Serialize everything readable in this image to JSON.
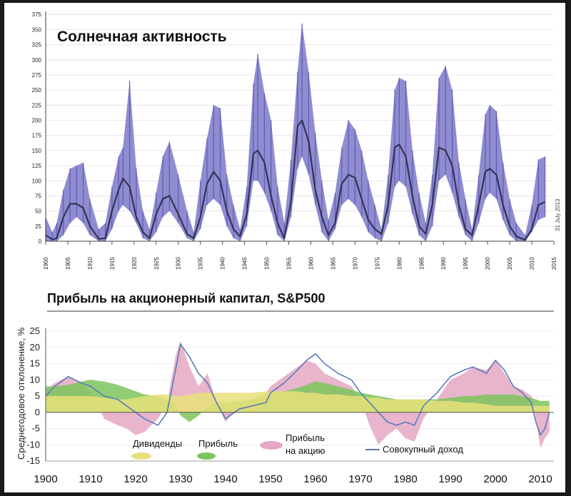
{
  "chart_data": [
    {
      "type": "line",
      "title": "Солнечная активность",
      "note": "31 July 2013",
      "xlim": [
        1900,
        2015
      ],
      "ylim": [
        0,
        380
      ],
      "x_ticks": [
        1900,
        1905,
        1910,
        1915,
        1920,
        1925,
        1930,
        1935,
        1940,
        1945,
        1950,
        1955,
        1960,
        1965,
        1970,
        1975,
        1980,
        1985,
        1990,
        1995,
        2000,
        2005,
        2010,
        2015
      ],
      "y_ticks": [
        0,
        25,
        50,
        75,
        100,
        125,
        150,
        175,
        200,
        225,
        250,
        275,
        300,
        325,
        350,
        375
      ],
      "series": [
        {
          "name": "",
          "kind": "monthly-range",
          "color": "#7b78c8",
          "x": [
            1900,
            1901.5,
            1902.5,
            1904,
            1905.5,
            1907,
            1908.5,
            1910,
            1912,
            1913.5,
            1915,
            1916.5,
            1917.5,
            1919,
            1920.5,
            1922,
            1923.5,
            1925,
            1926.5,
            1928,
            1930,
            1932,
            1933.5,
            1935,
            1936.5,
            1938,
            1939.5,
            1941,
            1942.5,
            1944,
            1945.5,
            1947,
            1948,
            1949.5,
            1951,
            1952.5,
            1954,
            1955.5,
            1957,
            1958,
            1959.5,
            1961,
            1962.5,
            1964,
            1965.5,
            1967,
            1968.5,
            1970,
            1971.5,
            1973,
            1974.5,
            1976,
            1977.5,
            1979,
            1980,
            1981.5,
            1983,
            1984.5,
            1986,
            1987.5,
            1989,
            1990.5,
            1992,
            1993.5,
            1995,
            1996.5,
            1998,
            1999.5,
            2000.5,
            2002,
            2003.5,
            2005,
            2006.5,
            2008.5,
            2010,
            2011.5,
            2013
          ],
          "high": [
            40,
            15,
            30,
            85,
            120,
            125,
            130,
            70,
            20,
            30,
            90,
            140,
            155,
            265,
            120,
            50,
            20,
            80,
            140,
            165,
            110,
            50,
            15,
            100,
            170,
            225,
            220,
            110,
            60,
            20,
            90,
            260,
            310,
            245,
            200,
            90,
            30,
            135,
            280,
            360,
            280,
            180,
            100,
            35,
            80,
            155,
            200,
            185,
            150,
            100,
            60,
            20,
            110,
            250,
            270,
            265,
            150,
            80,
            30,
            110,
            270,
            290,
            250,
            130,
            70,
            20,
            110,
            210,
            225,
            215,
            130,
            70,
            30,
            10,
            60,
            135,
            140
          ],
          "low": [
            0,
            0,
            0,
            10,
            30,
            40,
            30,
            10,
            0,
            0,
            20,
            50,
            60,
            50,
            30,
            5,
            0,
            15,
            40,
            50,
            30,
            5,
            0,
            20,
            60,
            70,
            60,
            25,
            5,
            0,
            25,
            100,
            100,
            80,
            50,
            10,
            0,
            40,
            120,
            140,
            110,
            60,
            15,
            0,
            20,
            60,
            70,
            60,
            40,
            15,
            5,
            0,
            30,
            90,
            100,
            90,
            45,
            10,
            0,
            25,
            100,
            110,
            80,
            40,
            10,
            0,
            30,
            70,
            80,
            70,
            35,
            10,
            0,
            0,
            15,
            35,
            40
          ]
        },
        {
          "name": "",
          "kind": "smoothed",
          "color": "#333355",
          "x": [
            1900,
            1901.5,
            1902.5,
            1904,
            1905.5,
            1907,
            1908.5,
            1910,
            1912,
            1913.5,
            1915,
            1916.5,
            1917.5,
            1919,
            1920.5,
            1922,
            1923.5,
            1925,
            1926.5,
            1928,
            1930,
            1932,
            1933.5,
            1935,
            1936.5,
            1938,
            1939.5,
            1941,
            1942.5,
            1944,
            1945.5,
            1947,
            1948,
            1949.5,
            1951,
            1952.5,
            1954,
            1955.5,
            1957,
            1958,
            1959.5,
            1961,
            1962.5,
            1964,
            1965.5,
            1967,
            1968.5,
            1970,
            1971.5,
            1973,
            1974.5,
            1976,
            1977.5,
            1979,
            1980,
            1981.5,
            1983,
            1984.5,
            1986,
            1987.5,
            1989,
            1990.5,
            1992,
            1993.5,
            1995,
            1996.5,
            1998,
            1999.5,
            2000.5,
            2002,
            2003.5,
            2005,
            2006.5,
            2008.5,
            2010,
            2011.5,
            2013
          ],
          "values": [
            10,
            3,
            5,
            40,
            62,
            62,
            55,
            25,
            4,
            5,
            50,
            85,
            104,
            90,
            40,
            15,
            5,
            45,
            70,
            75,
            45,
            12,
            5,
            40,
            95,
            115,
            100,
            50,
            20,
            8,
            45,
            145,
            150,
            130,
            75,
            30,
            5,
            65,
            190,
            200,
            165,
            85,
            40,
            10,
            30,
            95,
            110,
            105,
            70,
            35,
            20,
            12,
            60,
            155,
            160,
            140,
            75,
            25,
            12,
            60,
            155,
            150,
            125,
            60,
            20,
            10,
            60,
            115,
            120,
            110,
            60,
            25,
            8,
            2,
            20,
            60,
            65
          ]
        }
      ]
    },
    {
      "type": "area",
      "title": "Прибыль на акционерный капитал, S&P500",
      "ylabel": "Среднегодовое отклонение, %",
      "xlim": [
        1900,
        2013
      ],
      "ylim": [
        -15,
        25
      ],
      "x_ticks": [
        1900,
        1910,
        1920,
        1930,
        1940,
        1950,
        1960,
        1970,
        1980,
        1990,
        2000,
        2010
      ],
      "y_ticks": [
        -15,
        -10,
        -5,
        0,
        5,
        10,
        15,
        20,
        25
      ],
      "x": [
        1900,
        1902,
        1905,
        1908,
        1910,
        1913,
        1916,
        1918,
        1920,
        1922,
        1925,
        1927,
        1929,
        1930,
        1932,
        1934,
        1936,
        1938,
        1940,
        1943,
        1946,
        1949,
        1950,
        1953,
        1956,
        1958,
        1960,
        1962,
        1965,
        1968,
        1970,
        1972,
        1974,
        1976,
        1978,
        1980,
        1982,
        1984,
        1987,
        1990,
        1993,
        1995,
        1998,
        2000,
        2002,
        2004,
        2006,
        2008,
        2009,
        2010,
        2011,
        2012
      ],
      "series": [
        {
          "name": "Дивиденды",
          "color": "#e8e07a",
          "values": [
            5,
            5,
            5,
            5,
            5,
            4.5,
            4,
            4,
            4.5,
            5,
            5.5,
            5.5,
            5,
            5,
            5.5,
            6,
            6,
            6,
            6,
            6,
            6,
            6.5,
            6.5,
            6.5,
            6.5,
            6,
            6,
            5.5,
            5.5,
            5,
            5,
            4.5,
            4.5,
            4,
            4,
            4,
            4,
            4,
            3.5,
            3.5,
            3,
            3,
            2.5,
            2,
            2,
            2,
            2,
            2,
            2,
            2,
            2,
            2
          ]
        },
        {
          "name": "Прибыль",
          "color": "#7dc45c",
          "values": [
            8,
            8,
            8.5,
            9.5,
            10,
            9.5,
            8.5,
            7.5,
            6.5,
            5.5,
            5,
            4,
            2,
            -1,
            -3,
            -1,
            2,
            3,
            3,
            3.5,
            4,
            5,
            5.5,
            6.5,
            7.5,
            8.5,
            9.5,
            9,
            8,
            7,
            6,
            5.5,
            5,
            4.5,
            4,
            4,
            4,
            4,
            4,
            4.5,
            5,
            5,
            5.5,
            5.5,
            5.5,
            5.5,
            5,
            4.5,
            4,
            3.5,
            3.5,
            3.5
          ]
        },
        {
          "name": "Прибыль на акцию",
          "color": "#e4a8c4",
          "values": [
            7,
            9,
            11,
            9,
            6,
            -2,
            -4,
            -5,
            -7,
            -6,
            -2,
            3,
            18,
            22,
            14,
            8,
            12,
            3,
            -3,
            2,
            4,
            6,
            8,
            11,
            14,
            16,
            15,
            12,
            10,
            8,
            4,
            -4,
            -10,
            -7,
            -5,
            -8,
            -9,
            -2,
            4,
            10,
            12,
            14,
            13,
            16,
            12,
            8,
            7,
            5,
            -2,
            -11,
            -8,
            -6
          ]
        },
        {
          "name": "Совокупный доход",
          "color": "#5a7cb8",
          "values": [
            5,
            8,
            11,
            9,
            8,
            5,
            4,
            2,
            0,
            -2,
            -4,
            0,
            14,
            21,
            17,
            12,
            9,
            3,
            -2,
            1,
            2,
            3,
            6,
            9,
            13,
            16,
            18,
            15,
            12,
            10,
            6,
            3,
            0,
            -3,
            -4,
            -3,
            -4,
            2,
            6,
            11,
            13,
            14,
            12,
            16,
            13,
            8,
            6,
            3,
            -3,
            -7,
            -5,
            0
          ]
        }
      ],
      "legend": [
        "Дивиденды",
        "Прибыль",
        "Прибыль на акцию",
        "Совокупный доход"
      ],
      "legend_lines": [
        "Прибыль",
        "на акцию"
      ]
    }
  ]
}
